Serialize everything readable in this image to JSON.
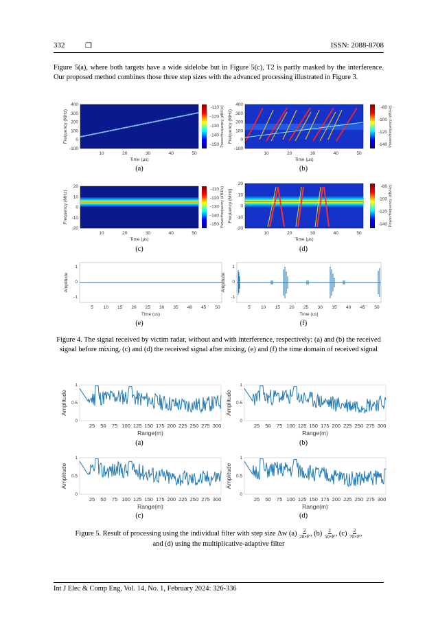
{
  "header": {
    "page_number": "332",
    "box_symbol": "❐",
    "issn": "ISSN: 2088-8708"
  },
  "body_paragraph": "Figure 5(a), where both targets have a wide sidelobe but in Figure 5(c), T2 is partly masked by the interference. Our proposed method combines those three step sizes with the advanced processing illustrated in Figure 3.",
  "figure4": {
    "spectrogram_panels": {
      "y_label": "Frequency (MHz)",
      "x_label": "Time (µs)",
      "colorbar_label": "Power/frequency (dB/Hz)",
      "x_ticks": [
        "10",
        "20",
        "30",
        "40",
        "50"
      ],
      "a": {
        "sub_label": "(a)",
        "y_ticks": [
          "400",
          "300",
          "200",
          "100",
          "0",
          "-100"
        ],
        "cbar_ticks": [
          "-110",
          "-120",
          "-130",
          "-140",
          "-150"
        ]
      },
      "b": {
        "sub_label": "(b)",
        "y_ticks": [
          "400",
          "300",
          "200",
          "100",
          "0",
          "-100"
        ],
        "cbar_ticks": [
          "-80",
          "-100",
          "-120",
          "-140"
        ]
      },
      "c": {
        "sub_label": "(c)",
        "y_ticks": [
          "20",
          "10",
          "0",
          "-10",
          "-20"
        ],
        "cbar_ticks": [
          "-110",
          "-120",
          "-130",
          "-140",
          "-150"
        ]
      },
      "d": {
        "sub_label": "(d)",
        "y_ticks": [
          "20",
          "10",
          "0",
          "-10",
          "-20"
        ],
        "cbar_ticks": [
          "-80",
          "-100",
          "-120",
          "-140"
        ]
      }
    },
    "time_panels": {
      "y_label": "Amplitude",
      "x_label": "Time (us)",
      "y_ticks": [
        "1",
        "0",
        "-1"
      ],
      "x_ticks": [
        "5",
        "10",
        "15",
        "20",
        "25",
        "30",
        "35",
        "40",
        "45",
        "50"
      ],
      "e": {
        "sub_label": "(e)"
      },
      "f": {
        "sub_label": "(f)"
      }
    },
    "caption": "Figure 4. The signal received by victim radar, without and with interference, respectively: (a) and (b) the received signal before mixing, (c) and (d) the received signal after mixing, (e) and (f) the time domain of received signal"
  },
  "figure5": {
    "y_label": "Amplitude",
    "x_label": "Range(m)",
    "y_ticks": [
      "1",
      "0.5",
      "0"
    ],
    "x_ticks": [
      "25",
      "50",
      "75",
      "100",
      "125",
      "150",
      "175",
      "200",
      "225",
      "250",
      "275",
      "300"
    ],
    "sub_labels": [
      "(a)",
      "(b)",
      "(c)",
      "(d)"
    ],
    "caption_prefix": "Figure 5. Result of processing using the individual filter with step size Δw (a)",
    "caption_sep": ", (b)",
    "caption_sep2": ", (c)",
    "caption_tail": ",",
    "caption_line2": "and (d) using the multiplicative-adaptive filter",
    "frac_num": "2",
    "frac_a": "20×P",
    "frac_b": "50×P",
    "frac_c": "70×P"
  },
  "footer": "Int J Elec & Comp Eng, Vol. 14, No. 1, February 2024: 326-336",
  "colors": {
    "plot_blue": "#1f77b4",
    "spec_bg": "#0a1a8c"
  }
}
